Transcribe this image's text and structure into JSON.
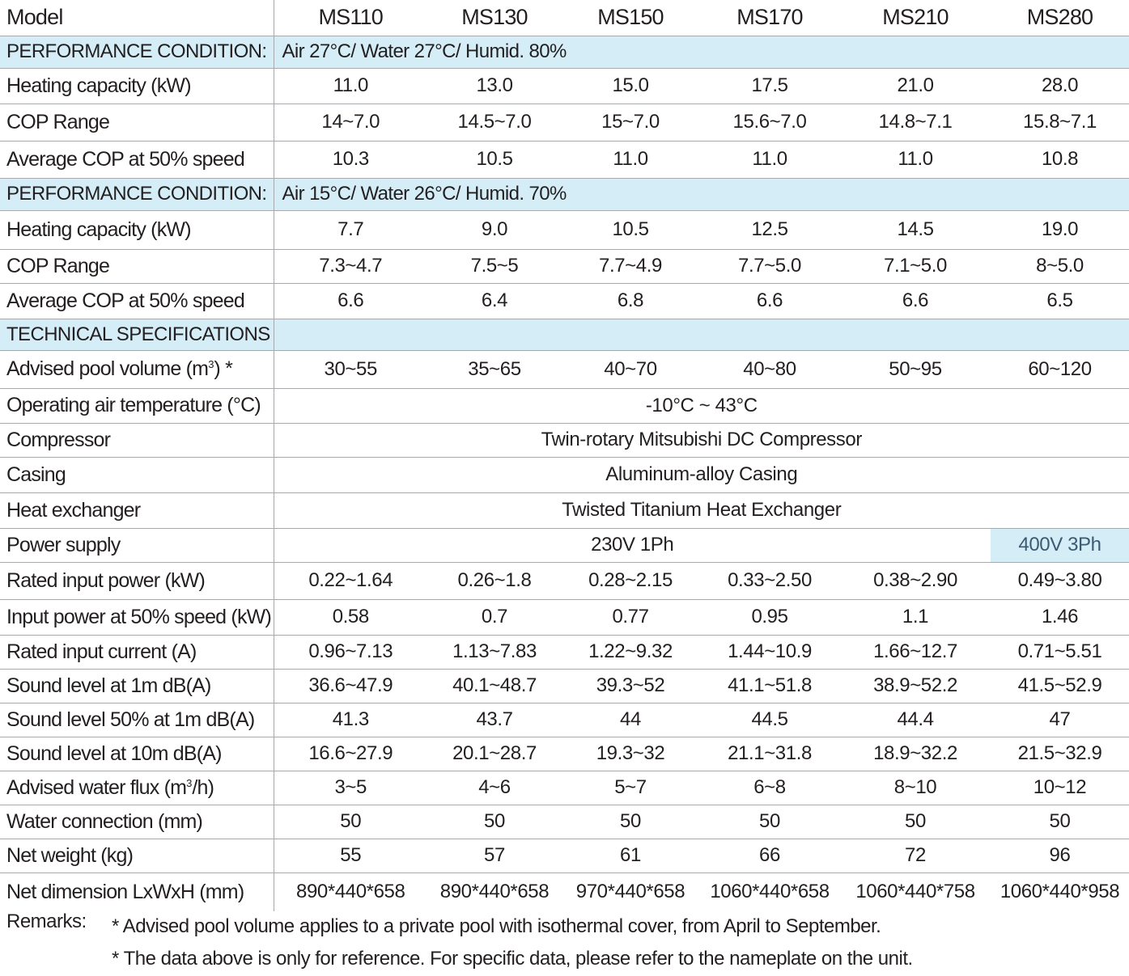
{
  "models": [
    "MS110",
    "MS130",
    "MS150",
    "MS170",
    "MS210",
    "MS280"
  ],
  "header_label": "Model",
  "condition1": {
    "label": "PERFORMANCE CONDITION:",
    "text": "Air 27°C/ Water 27°C/ Humid. 80%",
    "rows": [
      {
        "label": "Heating capacity (kW)",
        "values": [
          "11.0",
          "13.0",
          "15.0",
          "17.5",
          "21.0",
          "28.0"
        ]
      },
      {
        "label": "COP Range",
        "values": [
          "14~7.0",
          "14.5~7.0",
          "15~7.0",
          "15.6~7.0",
          "14.8~7.1",
          "15.8~7.1"
        ]
      },
      {
        "label": "Average COP at 50% speed",
        "values": [
          "10.3",
          "10.5",
          "11.0",
          "11.0",
          "11.0",
          "10.8"
        ]
      }
    ]
  },
  "condition2": {
    "label": "PERFORMANCE CONDITION:",
    "text": "Air 15°C/ Water 26°C/ Humid. 70%",
    "rows": [
      {
        "label": "Heating capacity (kW)",
        "values": [
          "7.7",
          "9.0",
          "10.5",
          "12.5",
          "14.5",
          "19.0"
        ]
      },
      {
        "label": "COP Range",
        "values": [
          "7.3~4.7",
          "7.5~5",
          "7.7~4.9",
          "7.7~5.0",
          "7.1~5.0",
          "8~5.0"
        ]
      },
      {
        "label": "Average COP at 50% speed",
        "values": [
          "6.6",
          "6.4",
          "6.8",
          "6.6",
          "6.6",
          "6.5"
        ]
      }
    ]
  },
  "tech": {
    "label": "TECHNICAL SPECIFICATIONS",
    "pool_volume": {
      "label_pre": "Advised pool volume (m",
      "label_sup": "3",
      "label_post": ") *",
      "values": [
        "30~55",
        "35~65",
        "40~70",
        "40~80",
        "50~95",
        "60~120"
      ]
    },
    "air_temp": {
      "label": "Operating air temperature (°C)",
      "value": "-10°C ~ 43°C"
    },
    "compressor": {
      "label": "Compressor",
      "value": "Twin-rotary Mitsubishi DC Compressor"
    },
    "casing": {
      "label": "Casing",
      "value": "Aluminum-alloy Casing"
    },
    "heat_exchanger": {
      "label": "Heat exchanger",
      "value": "Twisted Titanium Heat Exchanger"
    },
    "power_supply": {
      "label": "Power supply",
      "value_single": "230V 1Ph",
      "value_three": "400V 3Ph"
    },
    "rows_after": [
      {
        "label": "Rated input power (kW)",
        "values": [
          "0.22~1.64",
          "0.26~1.8",
          "0.28~2.15",
          "0.33~2.50",
          "0.38~2.90",
          "0.49~3.80"
        ]
      },
      {
        "label": "Input power at 50% speed (kW)",
        "values": [
          "0.58",
          "0.7",
          "0.77",
          "0.95",
          "1.1",
          "1.46"
        ]
      },
      {
        "label": "Rated input current (A)",
        "values": [
          "0.96~7.13",
          "1.13~7.83",
          "1.22~9.32",
          "1.44~10.9",
          "1.66~12.7",
          "0.71~5.51"
        ]
      },
      {
        "label": "Sound level  at 1m dB(A)",
        "values": [
          "36.6~47.9",
          "40.1~48.7",
          "39.3~52",
          "41.1~51.8",
          "38.9~52.2",
          "41.5~52.9"
        ]
      },
      {
        "label": "Sound level  50% at 1m dB(A)",
        "values": [
          "41.3",
          "43.7",
          "44",
          "44.5",
          "44.4",
          "47"
        ]
      },
      {
        "label": "Sound level  at 10m dB(A)",
        "values": [
          "16.6~27.9",
          "20.1~28.7",
          "19.3~32",
          "21.1~31.8",
          "18.9~32.2",
          "21.5~32.9"
        ]
      }
    ],
    "water_flux": {
      "label_pre": "Advised water flux (m",
      "label_sup": "3",
      "label_post": "/h)",
      "values": [
        "3~5",
        "4~6",
        "5~7",
        "6~8",
        "8~10",
        "10~12"
      ]
    },
    "rows_end": [
      {
        "label": "Water connection (mm)",
        "values": [
          "50",
          "50",
          "50",
          "50",
          "50",
          "50"
        ]
      },
      {
        "label": "Net weight (kg)",
        "values": [
          "55",
          "57",
          "61",
          "66",
          "72",
          "96"
        ]
      },
      {
        "label": "Net dimension LxWxH (mm)",
        "values": [
          "890*440*658",
          "890*440*658",
          "970*440*658",
          "1060*440*658",
          "1060*440*758",
          "1060*440*958"
        ]
      }
    ]
  },
  "remarks": {
    "label": "Remarks:",
    "lines": [
      "* Advised pool volume applies to a private pool with isothermal cover, from April to September.",
      "* The data above is only for reference. For specific data, please refer to the nameplate on the unit."
    ]
  }
}
